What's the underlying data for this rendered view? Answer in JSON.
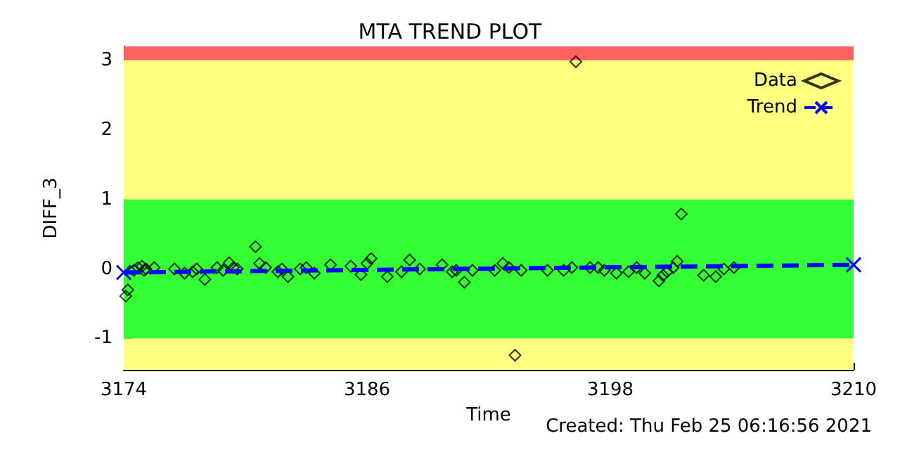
{
  "chart_data": {
    "type": "scatter",
    "title": "MTA TREND PLOT",
    "xlabel": "Time",
    "ylabel": "DIFF_3",
    "annotations": [
      "Created: Thu Feb 25 06:16:56 2021"
    ],
    "xlim": [
      3174,
      3210
    ],
    "xticks": [
      3174,
      3186,
      3198,
      3210
    ],
    "ylim": [
      -1.45,
      3.2
    ],
    "yticks": [
      -1,
      0,
      1,
      2,
      3
    ],
    "grid": false,
    "legend": "top right",
    "bands": [
      {
        "axis": "y",
        "from": 3,
        "to": 3.2,
        "color": "#ff6060"
      },
      {
        "axis": "y",
        "from": 1,
        "to": 3,
        "color": "#ffff80"
      },
      {
        "axis": "y",
        "from": -1,
        "to": 1,
        "color": "#33ff33"
      },
      {
        "axis": "y",
        "from": -1.45,
        "to": -1,
        "color": "#ffff80"
      }
    ],
    "series": [
      {
        "name": "Data",
        "marker": "diamond",
        "color": "#000000",
        "x": [
          3174.1,
          3174.2,
          3174.5,
          3174.7,
          3174.9,
          3175.0,
          3175.1,
          3175.5,
          3176.5,
          3177.0,
          3177.4,
          3177.6,
          3178.0,
          3178.6,
          3178.9,
          3179.2,
          3179.4,
          3179.6,
          3180.5,
          3180.7,
          3181.0,
          3181.6,
          3181.8,
          3182.1,
          3182.7,
          3183.0,
          3183.4,
          3184.2,
          3185.2,
          3185.7,
          3186.0,
          3186.2,
          3187.0,
          3187.7,
          3188.1,
          3188.6,
          3189.7,
          3190.2,
          3190.4,
          3190.8,
          3191.2,
          3192.3,
          3192.7,
          3193.0,
          3193.3,
          3193.6,
          3194.9,
          3195.7,
          3196.1,
          3196.3,
          3197.0,
          3197.4,
          3197.7,
          3198.3,
          3198.9,
          3199.3,
          3199.7,
          3200.4,
          3200.6,
          3200.8,
          3201.1,
          3201.3,
          3201.5,
          3202.6,
          3203.2,
          3203.6,
          3204.1
        ],
        "values": [
          -0.39,
          -0.3,
          -0.02,
          0.02,
          0.04,
          -0.02,
          0,
          0.02,
          0,
          -0.06,
          -0.04,
          0,
          -0.15,
          0.02,
          -0.02,
          0.09,
          0.02,
          0,
          0.32,
          0.08,
          0.02,
          -0.04,
          0,
          -0.11,
          0,
          0.02,
          -0.06,
          0.06,
          0.04,
          -0.08,
          0.08,
          0.15,
          -0.11,
          -0.04,
          0.13,
          0,
          0.06,
          -0.04,
          -0.02,
          -0.19,
          -0.02,
          -0.02,
          0.08,
          0.02,
          -1.24,
          -0.02,
          -0.02,
          -0.02,
          0.02,
          2.98,
          0.02,
          0.02,
          -0.02,
          -0.06,
          -0.04,
          0.02,
          -0.06,
          -0.17,
          -0.09,
          -0.04,
          0.02,
          0.11,
          0.79,
          -0.09,
          -0.11,
          0,
          0.02
        ]
      },
      {
        "name": "Trend",
        "type": "line",
        "marker": "cross",
        "line_style": "dashed",
        "color": "#0000ff",
        "x": [
          3174,
          3210
        ],
        "values": [
          -0.05,
          0.06
        ]
      }
    ]
  }
}
